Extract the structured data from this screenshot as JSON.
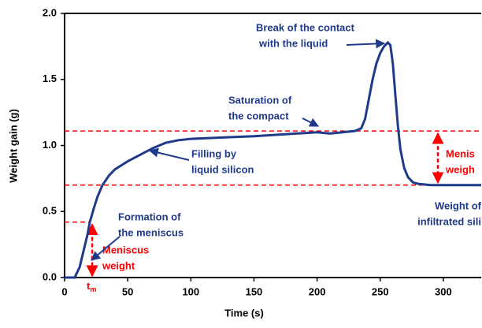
{
  "chart_data": {
    "type": "line",
    "xlabel": "Time (s)",
    "ylabel": "Weight gain (g)",
    "x": [
      0,
      8,
      12,
      15,
      18,
      20,
      23,
      26,
      30,
      35,
      40,
      50,
      60,
      70,
      80,
      90,
      100,
      125,
      150,
      175,
      200,
      210,
      220,
      230,
      235,
      238,
      241,
      244,
      247,
      250,
      253,
      256,
      258,
      260,
      262,
      264,
      266,
      269,
      272,
      276,
      280,
      290,
      300,
      330
    ],
    "values": [
      0,
      0,
      0.08,
      0.2,
      0.32,
      0.42,
      0.52,
      0.61,
      0.7,
      0.77,
      0.82,
      0.88,
      0.93,
      0.98,
      1.02,
      1.04,
      1.05,
      1.06,
      1.07,
      1.085,
      1.1,
      1.09,
      1.1,
      1.11,
      1.13,
      1.2,
      1.35,
      1.5,
      1.62,
      1.7,
      1.75,
      1.78,
      1.76,
      1.62,
      1.38,
      1.15,
      0.97,
      0.83,
      0.76,
      0.72,
      0.71,
      0.7,
      0.7,
      0.7
    ],
    "color": "#1f3a8a",
    "xlim": [
      0,
      330
    ],
    "ylim": [
      0,
      2
    ],
    "xticks": [
      0,
      50,
      100,
      150,
      200,
      250,
      300
    ],
    "yticks": [
      {
        "value": 0,
        "label": "0.0"
      },
      {
        "value": 0.5,
        "label": "0.5"
      },
      {
        "value": 1,
        "label": "1.0"
      },
      {
        "value": 1.5,
        "label": "1.5"
      },
      {
        "value": 2,
        "label": "2.0"
      }
    ],
    "ref_lines": [
      1.11,
      0.7
    ],
    "ref_color": "#ff0000",
    "meniscus": {
      "weight": 0.42,
      "t": 20
    },
    "tm": {
      "text": "t",
      "sub": "m"
    },
    "annotations": [
      {
        "lines": [
          "Break of the contact",
          "with the liquid"
        ],
        "color": "#1f3a8a"
      },
      {
        "lines": [
          "Saturation of",
          "the compact"
        ],
        "color": "#1f3a8a"
      },
      {
        "lines": [
          "Filling by",
          "liquid silicon"
        ],
        "color": "#1f3a8a"
      },
      {
        "lines": [
          "Formation of",
          "the meniscus"
        ],
        "color": "#1f3a8a"
      },
      {
        "lines": [
          "Meniscus",
          "weight"
        ],
        "color": "#ff0000"
      },
      {
        "lines": [
          "Menis",
          "weigh"
        ],
        "color": "#ff0000"
      },
      {
        "lines": [
          "Weight of",
          "infiltrated sili"
        ],
        "color": "#1f3a8a"
      }
    ]
  }
}
